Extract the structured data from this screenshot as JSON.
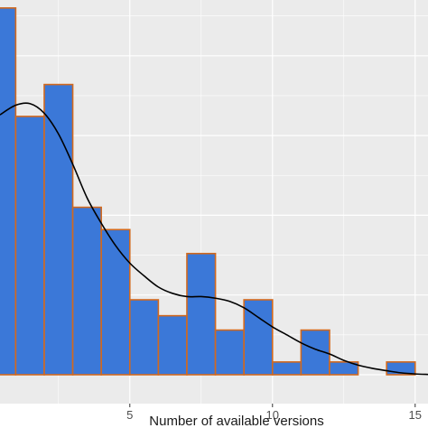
{
  "chart_data": {
    "type": "bar",
    "subtype": "histogram",
    "xlabel": "Number of available versions",
    "ylabel": "",
    "xlim": [
      0.45,
      15.45
    ],
    "ylim": [
      0,
      23.5
    ],
    "x_ticks": [
      {
        "value": 5,
        "label": "5"
      },
      {
        "value": 10,
        "label": "10"
      },
      {
        "value": 15,
        "label": "15"
      }
    ],
    "y_gridlines": [
      5,
      10,
      15,
      20
    ],
    "bins": [
      {
        "start": 0.0,
        "end": 1.0,
        "count": 23
      },
      {
        "start": 1.0,
        "end": 2.0,
        "count": 16.2
      },
      {
        "start": 2.0,
        "end": 3.0,
        "count": 18.2
      },
      {
        "start": 3.0,
        "end": 4.0,
        "count": 10.5
      },
      {
        "start": 4.0,
        "end": 5.0,
        "count": 9.1
      },
      {
        "start": 5.0,
        "end": 6.0,
        "count": 4.7
      },
      {
        "start": 6.0,
        "end": 7.0,
        "count": 3.7
      },
      {
        "start": 7.0,
        "end": 8.0,
        "count": 7.6
      },
      {
        "start": 8.0,
        "end": 9.0,
        "count": 2.8
      },
      {
        "start": 9.0,
        "end": 10.0,
        "count": 4.7
      },
      {
        "start": 10.0,
        "end": 11.0,
        "count": 0.8
      },
      {
        "start": 11.0,
        "end": 12.0,
        "count": 2.8
      },
      {
        "start": 12.0,
        "end": 13.0,
        "count": 0.8
      },
      {
        "start": 13.0,
        "end": 14.0,
        "count": 0.0
      },
      {
        "start": 14.0,
        "end": 15.0,
        "count": 0.8
      }
    ],
    "density_curve": {
      "x": [
        0.45,
        1.0,
        1.5,
        2.0,
        2.5,
        3.0,
        3.5,
        4.0,
        4.5,
        5.0,
        5.5,
        6.0,
        6.5,
        7.0,
        7.5,
        8.0,
        8.5,
        9.0,
        9.5,
        10.0,
        10.5,
        11.0,
        11.5,
        12.0,
        12.5,
        13.0,
        13.5,
        14.0,
        14.5,
        15.0,
        15.45
      ],
      "y": [
        16.3,
        16.9,
        17.0,
        16.4,
        15.1,
        13.2,
        11.1,
        9.5,
        8.1,
        7.0,
        6.2,
        5.5,
        5.1,
        4.9,
        4.9,
        4.8,
        4.6,
        4.2,
        3.6,
        3.0,
        2.5,
        2.0,
        1.6,
        1.3,
        0.9,
        0.6,
        0.4,
        0.25,
        0.12,
        0.05,
        0.02
      ]
    },
    "colors": {
      "panel_background": "#ebebeb",
      "gridline": "#ffffff",
      "bar_fill": "#3b78d8",
      "bar_outline": "#d2691e",
      "curve": "#000000"
    },
    "grid": true,
    "legend": "none"
  }
}
